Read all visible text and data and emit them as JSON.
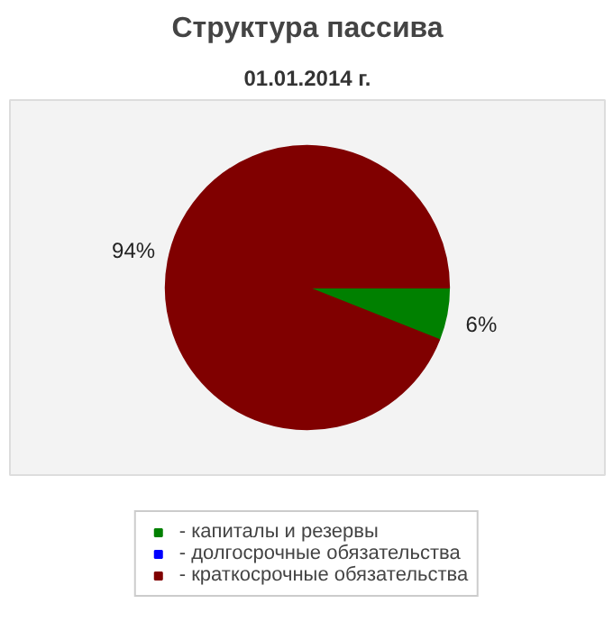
{
  "chart_data": {
    "type": "pie",
    "title": "Структура пассива",
    "subtitle": "01.01.2014 г.",
    "categories": [
      "- капиталы и резервы",
      "- долгосрочные обязательства",
      "- краткосрочные обязательства"
    ],
    "values": [
      6,
      0,
      94
    ],
    "colors": [
      "#008000",
      "#0000ff",
      "#800000"
    ],
    "value_labels": [
      "6%",
      null,
      "94%"
    ],
    "legend": "bottom"
  }
}
